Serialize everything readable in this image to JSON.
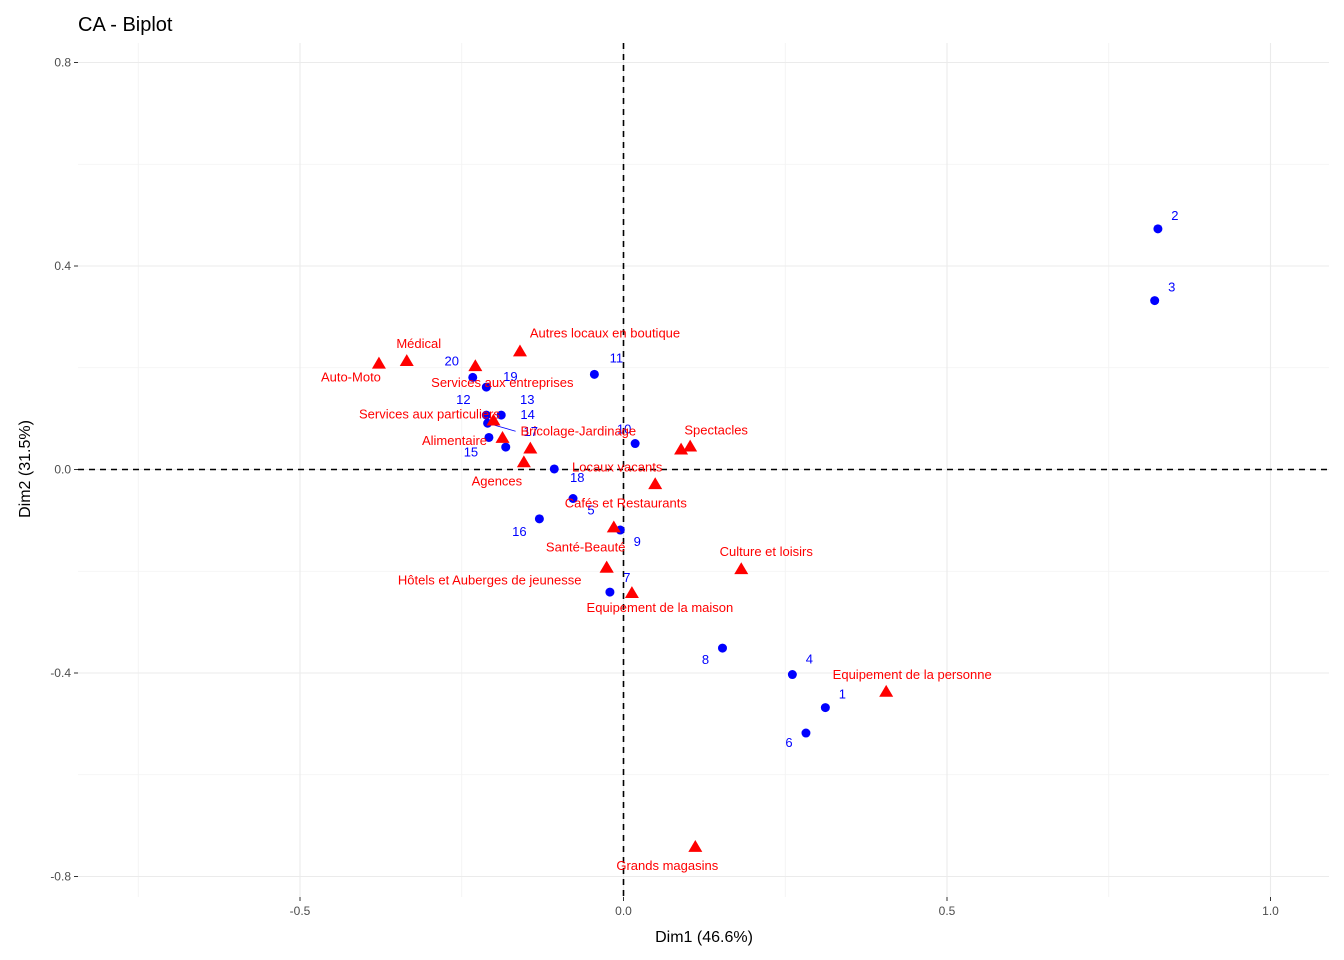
{
  "chart_data": {
    "type": "scatter",
    "title": "CA - Biplot",
    "xlabel": "Dim1 (46.6%)",
    "ylabel": "Dim2 (31.5%)",
    "xlim": [
      -0.87,
      1.08
    ],
    "ylim": [
      -0.82,
      0.84
    ],
    "x_ticks": [
      -0.5,
      0.0,
      0.5,
      1.0
    ],
    "x_tick_labels": [
      "-0.5",
      "0.0",
      "0.5",
      "1.0"
    ],
    "y_ticks": [
      -0.8,
      -0.4,
      0.0,
      0.4,
      0.8
    ],
    "y_tick_labels": [
      "-0.8",
      "-0.4",
      "0.0",
      "0.4",
      "0.8"
    ],
    "grid": true,
    "reference_lines": {
      "x": 0,
      "y": 0,
      "style": "dashed"
    },
    "series": [
      {
        "color": "#0000ff",
        "marker": "circle",
        "points": [
          {
            "label": "1",
            "x": 0.312,
            "y": -0.468
          },
          {
            "label": "2",
            "x": 0.826,
            "y": 0.473
          },
          {
            "label": "3",
            "x": 0.821,
            "y": 0.332
          },
          {
            "label": "4",
            "x": 0.261,
            "y": -0.403
          },
          {
            "label": "5",
            "x": -0.078,
            "y": -0.057
          },
          {
            "label": "6",
            "x": 0.282,
            "y": -0.518
          },
          {
            "label": "7",
            "x": -0.021,
            "y": -0.241
          },
          {
            "label": "8",
            "x": 0.153,
            "y": -0.351
          },
          {
            "label": "9",
            "x": -0.005,
            "y": -0.119
          },
          {
            "label": "10",
            "x": 0.018,
            "y": 0.051
          },
          {
            "label": "11",
            "x": -0.045,
            "y": 0.187
          },
          {
            "label": "12",
            "x": -0.212,
            "y": 0.107
          },
          {
            "label": "13",
            "x": -0.189,
            "y": 0.107
          },
          {
            "label": "14",
            "x": -0.21,
            "y": 0.091
          },
          {
            "label": "15",
            "x": -0.208,
            "y": 0.063
          },
          {
            "label": "16",
            "x": -0.13,
            "y": -0.097
          },
          {
            "label": "17",
            "x": -0.182,
            "y": 0.044
          },
          {
            "label": "18",
            "x": -0.107,
            "y": 0.001
          },
          {
            "label": "19",
            "x": -0.212,
            "y": 0.162
          },
          {
            "label": "20",
            "x": -0.233,
            "y": 0.181
          }
        ]
      },
      {
        "color": "#ff0000",
        "marker": "triangle",
        "points": [
          {
            "label": "Autres locaux en boutique",
            "x": -0.16,
            "y": 0.232
          },
          {
            "label": "Médical",
            "x": -0.335,
            "y": 0.213
          },
          {
            "label": "Auto-Moto",
            "x": -0.378,
            "y": 0.208
          },
          {
            "label": "Services aux entreprises",
            "x": -0.229,
            "y": 0.203
          },
          {
            "label": "Services aux particuliers",
            "x": -0.201,
            "y": 0.096
          },
          {
            "label": "Bricolage-Jardinage",
            "x": -0.144,
            "y": 0.041
          },
          {
            "label": "Alimentaire",
            "x": -0.187,
            "y": 0.062
          },
          {
            "label": "Spectacles",
            "x": 0.103,
            "y": 0.045
          },
          {
            "label": "",
            "x": 0.089,
            "y": 0.039
          },
          {
            "label": "Locaux vacants",
            "x": 0.049,
            "y": -0.029
          },
          {
            "label": "Agences",
            "x": -0.154,
            "y": 0.014
          },
          {
            "label": "Cafés et Restaurants",
            "x": -0.015,
            "y": -0.114
          },
          {
            "label": "Santé-Beauté",
            "x": -0.026,
            "y": -0.193
          },
          {
            "label": "Culture et loisirs",
            "x": 0.182,
            "y": -0.196
          },
          {
            "label": "Hôtels et Auberges de jeunesse",
            "x": -0.026,
            "y": -0.193
          },
          {
            "label": "Equipement de la maison",
            "x": 0.013,
            "y": -0.243
          },
          {
            "label": "Equipement de la personne",
            "x": 0.406,
            "y": -0.437
          },
          {
            "label": "Grands magasins",
            "x": 0.111,
            "y": -0.742
          }
        ]
      }
    ],
    "legend": "none"
  }
}
